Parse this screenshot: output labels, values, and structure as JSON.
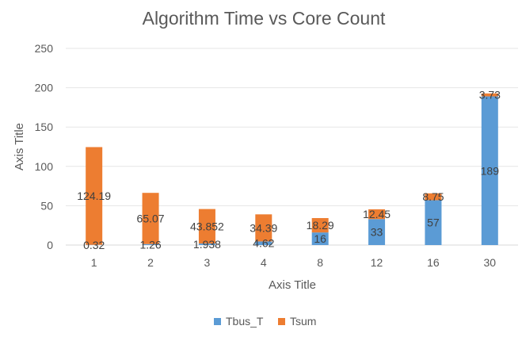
{
  "chart_data": {
    "type": "bar",
    "stacked": true,
    "title": "Algorithm Time vs Core Count",
    "xlabel": "Axis Title",
    "ylabel": "Axis Title",
    "categories": [
      "1",
      "2",
      "3",
      "4",
      "8",
      "12",
      "16",
      "30"
    ],
    "ylim": [
      0,
      250
    ],
    "yticks": [
      0,
      50,
      100,
      150,
      200,
      250
    ],
    "grid": true,
    "legend_position": "bottom",
    "series": [
      {
        "name": "Tbus_T",
        "color": "#5B9BD5",
        "values": [
          0.32,
          1.26,
          1.938,
          4.62,
          16,
          33,
          57,
          189
        ],
        "labels": [
          "0.32",
          "1.26",
          "1.938",
          "4.62",
          "16",
          "33",
          "57",
          "189"
        ]
      },
      {
        "name": "Tsum",
        "color": "#ED7D31",
        "values": [
          124.19,
          65.07,
          43.852,
          34.39,
          18.29,
          12.45,
          8.75,
          3.73
        ],
        "labels": [
          "124.19",
          "65.07",
          "43.852",
          "34.39",
          "18.29",
          "12.45",
          "8.75",
          "3.73"
        ]
      }
    ]
  }
}
